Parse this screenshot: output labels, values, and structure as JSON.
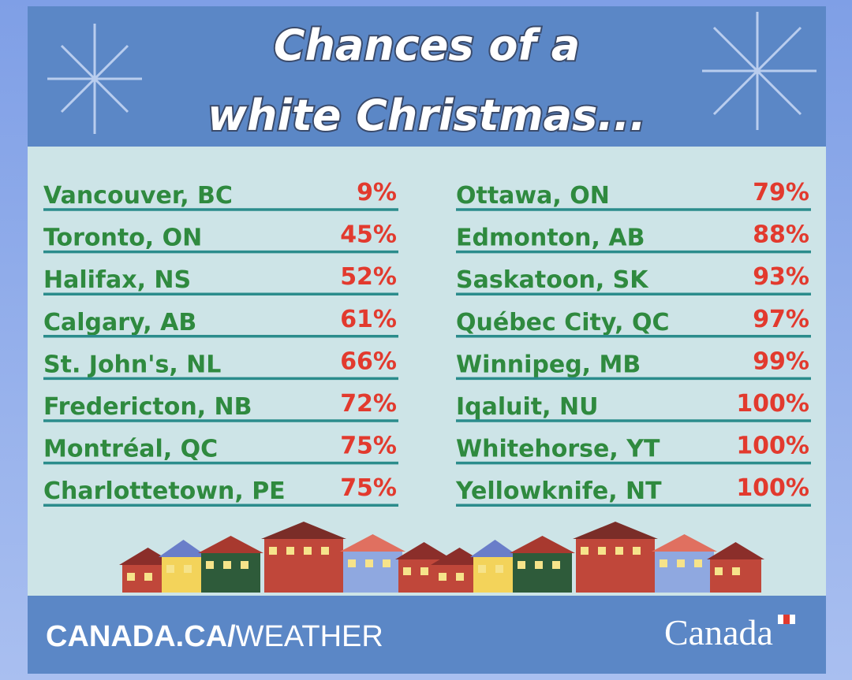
{
  "header": {
    "title_lines": [
      "Chances of a",
      "white Christmas..."
    ]
  },
  "columns": [
    {
      "rows": [
        {
          "city": "Vancouver, BC",
          "chance": "9%"
        },
        {
          "city": "Toronto, ON",
          "chance": "45%"
        },
        {
          "city": "Halifax, NS",
          "chance": "52%"
        },
        {
          "city": "Calgary, AB",
          "chance": "61%"
        },
        {
          "city": "St. John's, NL",
          "chance": "66%"
        },
        {
          "city": "Fredericton, NB",
          "chance": "72%"
        },
        {
          "city": "Montréal, QC",
          "chance": "75%"
        },
        {
          "city": "Charlottetown, PE",
          "chance": "75%"
        }
      ]
    },
    {
      "rows": [
        {
          "city": "Ottawa, ON",
          "chance": "79%"
        },
        {
          "city": "Edmonton, AB",
          "chance": "88%"
        },
        {
          "city": "Saskatoon, SK",
          "chance": "93%"
        },
        {
          "city": "Québec City, QC",
          "chance": "97%"
        },
        {
          "city": "Winnipeg, MB",
          "chance": "99%"
        },
        {
          "city": "Iqaluit, NU",
          "chance": "100%"
        },
        {
          "city": "Whitehorse, YT",
          "chance": "100%"
        },
        {
          "city": "Yellowknife, NT",
          "chance": "100%"
        }
      ]
    }
  ],
  "footer": {
    "url_bold": "CANADA.CA/",
    "url_rest": "WEATHER",
    "wordmark": "Canada"
  }
}
